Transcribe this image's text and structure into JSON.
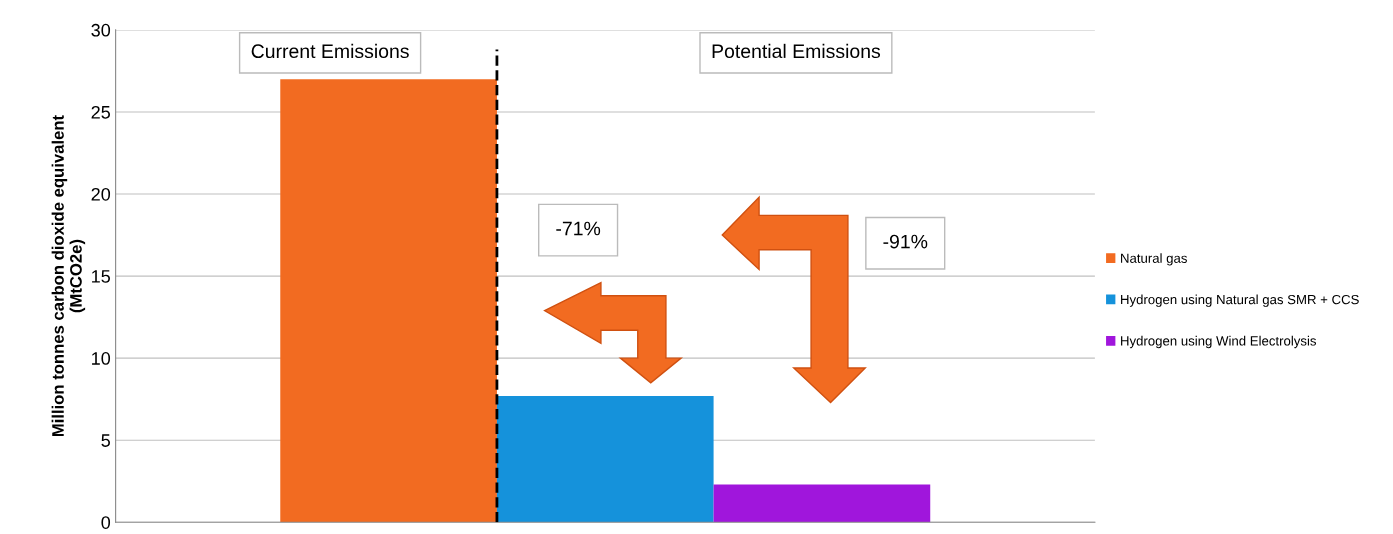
{
  "chart_data": {
    "type": "bar",
    "ylabel": "Million tonnes carbon dioxide equivalent\n(MtCO2e)",
    "categories": [
      null,
      null,
      null
    ],
    "series": [
      {
        "name": "Natural gas",
        "color": "#f26b21",
        "values": [
          27,
          null,
          null
        ]
      },
      {
        "name": "Hydrogen using Natural gas SMR + CCS",
        "color": "#1592db",
        "values": [
          null,
          7.7,
          null
        ]
      },
      {
        "name": "Hydrogen using Wind Electrolysis",
        "color": "#a016dc",
        "values": [
          null,
          null,
          2.3
        ]
      }
    ],
    "ylim": [
      0,
      30
    ],
    "yticks": [
      0,
      5,
      10,
      15,
      20,
      25,
      30
    ],
    "grid": "y",
    "legend": "right",
    "annotations": [
      "Current Emissions",
      "Potential Emissions",
      "-71%",
      "-91%"
    ]
  }
}
